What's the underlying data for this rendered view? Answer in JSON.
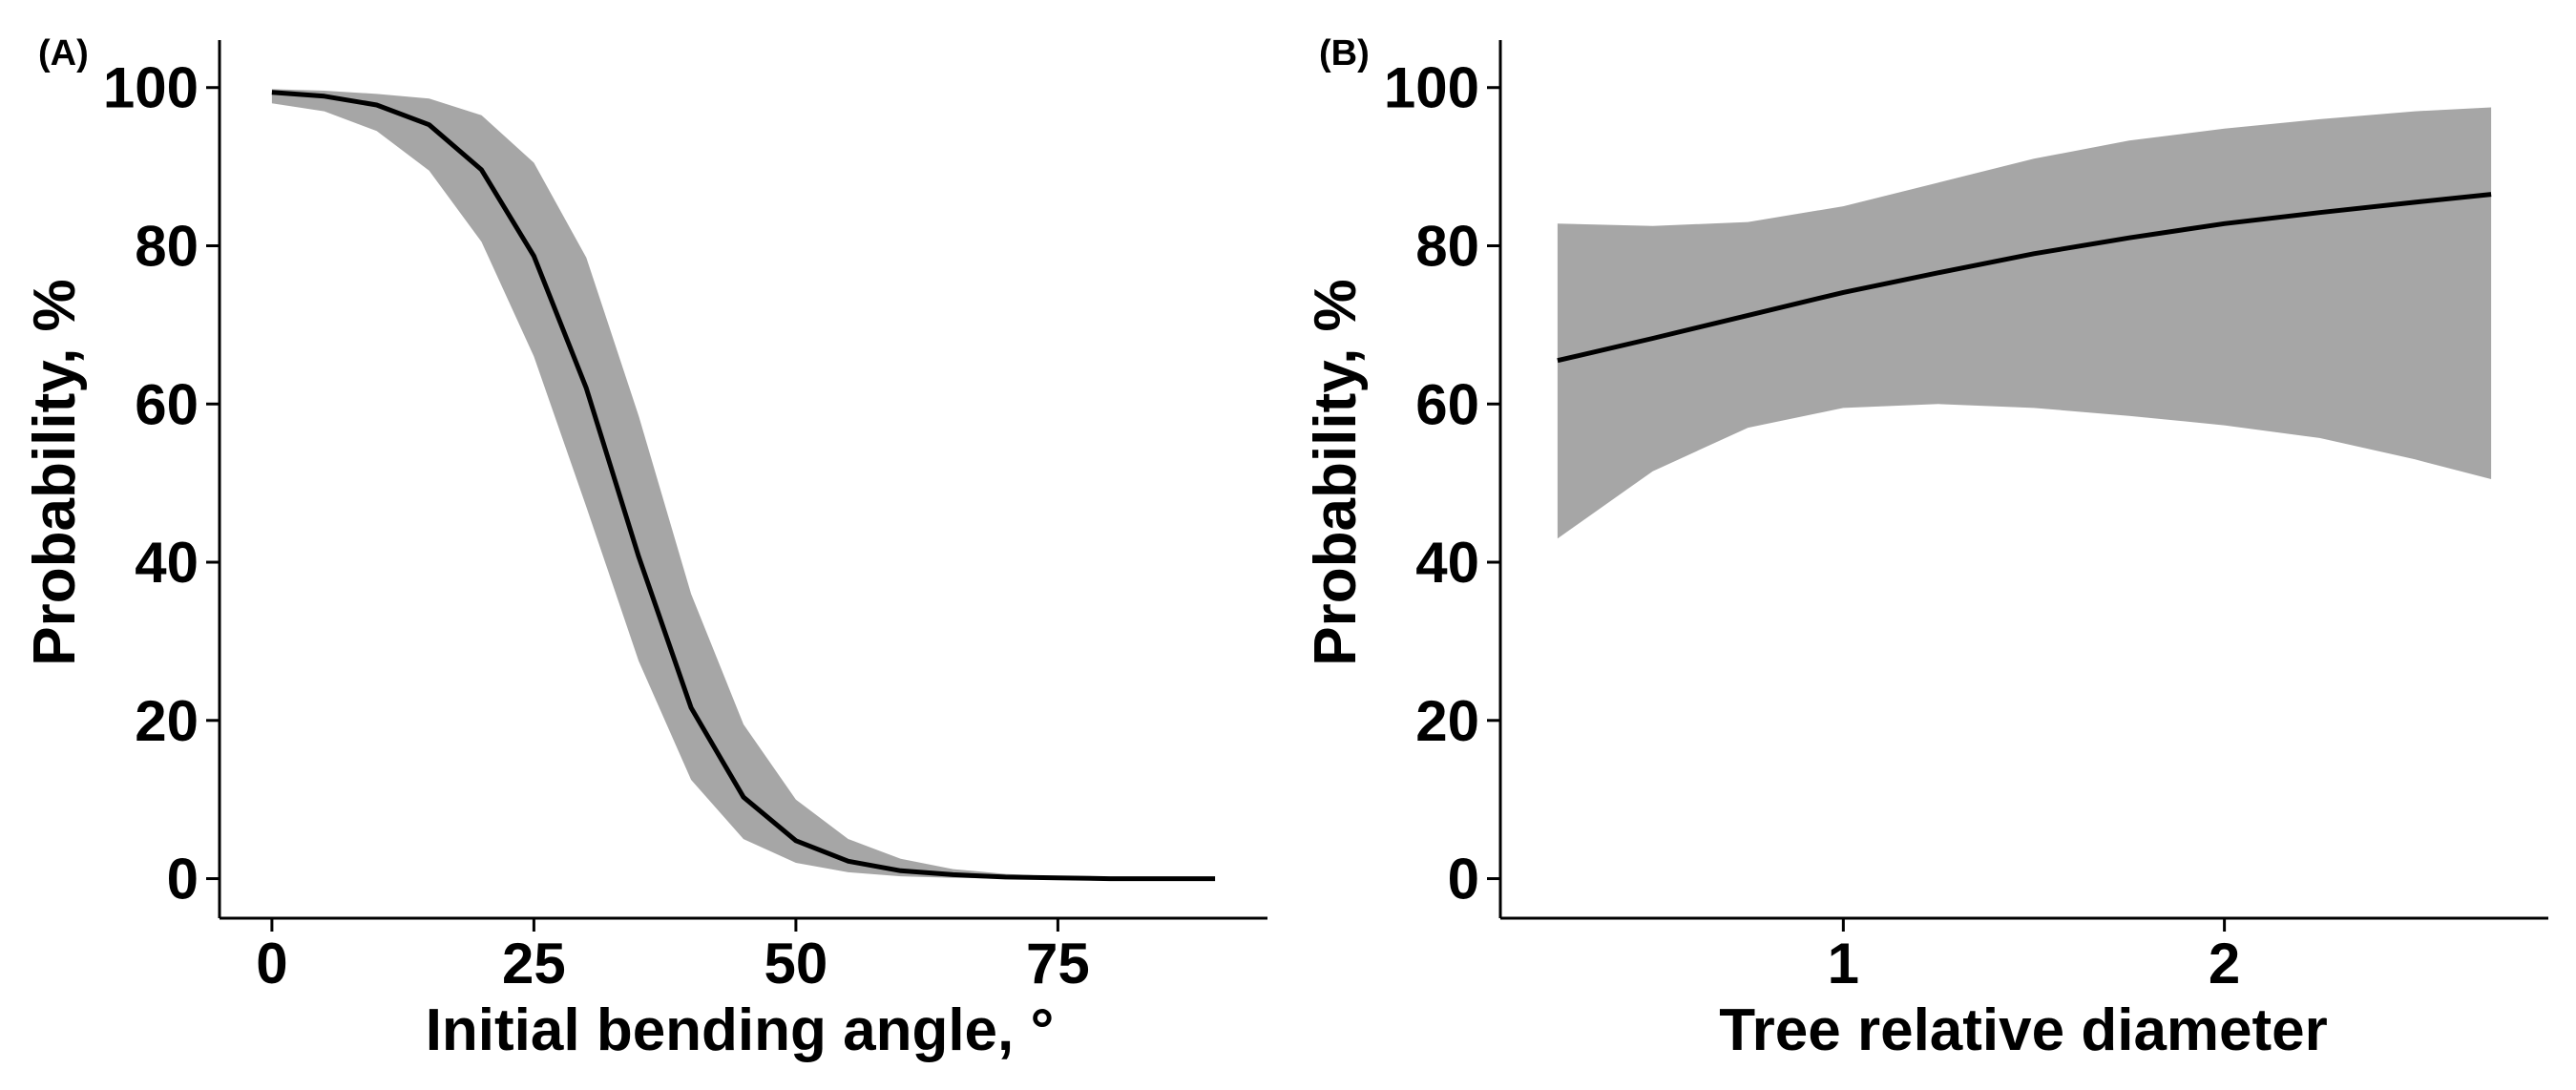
{
  "chart_data": [
    {
      "panel": "(A)",
      "type": "line",
      "xlabel": "Initial bending angle, °",
      "ylabel": "Probability, %",
      "xlim": [
        -5,
        95
      ],
      "ylim": [
        -5,
        106
      ],
      "x_ticks": [
        0,
        25,
        50,
        75
      ],
      "y_ticks": [
        0,
        20,
        40,
        60,
        80,
        100
      ],
      "series": [
        {
          "name": "fit",
          "x": [
            0,
            5,
            10,
            15,
            20,
            25,
            30,
            35,
            40,
            45,
            50,
            55,
            60,
            65,
            70,
            75,
            80,
            85,
            90
          ],
          "y": [
            99.4,
            98.9,
            97.8,
            95.3,
            89.6,
            78.7,
            62.0,
            40.7,
            21.6,
            10.3,
            4.8,
            2.2,
            1.0,
            0.5,
            0.2,
            0.1,
            0.0,
            0.0,
            0.0
          ],
          "lower": [
            98.0,
            97.0,
            94.5,
            89.5,
            80.5,
            66.0,
            47.0,
            27.5,
            12.5,
            5.0,
            2.0,
            0.8,
            0.3,
            0.1,
            0.0,
            0.0,
            0.0,
            0.0,
            0.0
          ],
          "upper": [
            99.8,
            99.6,
            99.2,
            98.6,
            96.5,
            90.5,
            78.5,
            58.5,
            36.0,
            19.5,
            10.0,
            5.0,
            2.5,
            1.2,
            0.6,
            0.3,
            0.1,
            0.0,
            0.0
          ]
        }
      ]
    },
    {
      "panel": "(B)",
      "type": "line",
      "xlabel": "Tree relative diameter",
      "ylabel": "Probability, %",
      "xlim": [
        0.1,
        2.85
      ],
      "ylim": [
        -5,
        106
      ],
      "x_ticks": [
        1,
        2
      ],
      "y_ticks": [
        0,
        20,
        40,
        60,
        80,
        100
      ],
      "series": [
        {
          "name": "fit",
          "x": [
            0.25,
            0.5,
            0.75,
            1.0,
            1.25,
            1.5,
            1.75,
            2.0,
            2.25,
            2.5,
            2.7
          ],
          "y": [
            65.5,
            68.3,
            71.2,
            74.1,
            76.6,
            79.0,
            81.0,
            82.8,
            84.2,
            85.5,
            86.5
          ],
          "lower": [
            43.0,
            51.5,
            57.0,
            59.5,
            60.0,
            59.5,
            58.5,
            57.3,
            55.7,
            53.0,
            50.5
          ],
          "upper": [
            82.8,
            82.5,
            83.0,
            85.0,
            88.0,
            91.0,
            93.3,
            94.8,
            96.0,
            97.0,
            97.5
          ]
        }
      ]
    }
  ]
}
